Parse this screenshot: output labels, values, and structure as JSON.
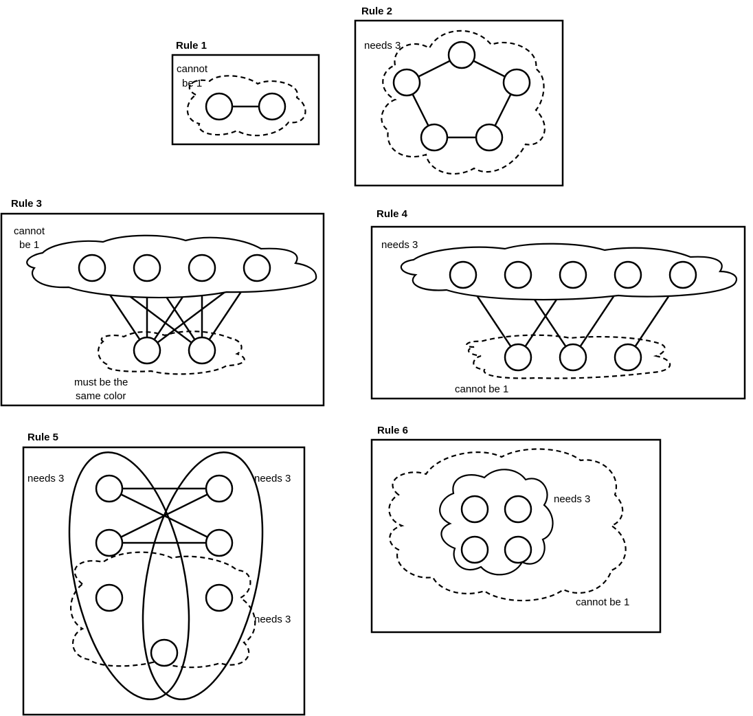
{
  "rules": [
    {
      "title": "Rule 1",
      "notes": [
        "cannot",
        "be 1"
      ]
    },
    {
      "title": "Rule 2",
      "notes": [
        "needs 3"
      ]
    },
    {
      "title": "Rule 3",
      "notes": [
        "cannot",
        "be 1",
        "must be the",
        "same color"
      ]
    },
    {
      "title": "Rule 4",
      "notes": [
        "needs 3",
        "cannot be 1"
      ]
    },
    {
      "title": "Rule 5",
      "notes": [
        "needs 3",
        "needs 3",
        "needs 3"
      ]
    },
    {
      "title": "Rule 6",
      "notes": [
        "needs 3",
        "cannot be 1"
      ]
    }
  ],
  "colors": {
    "stroke": "#000000",
    "background": "#ffffff"
  }
}
